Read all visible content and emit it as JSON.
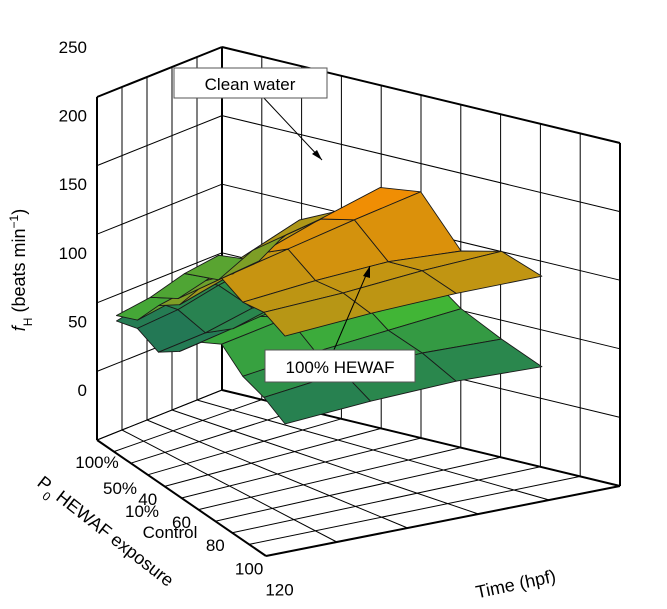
{
  "chart_data": {
    "type": "surface3d",
    "title": "",
    "zlabel": {
      "main": "f",
      "sub": "H",
      "rest": " (beats min",
      "sup": "−1",
      "close": ")"
    },
    "xlabel": "Time (hpf)",
    "ylabel": {
      "main": "P",
      "sub": "0",
      "rest": " HEWAF exposure"
    },
    "zlim": [
      0,
      250
    ],
    "z_ticks": [
      "0",
      "50",
      "100",
      "150",
      "200",
      "250"
    ],
    "time_ticks": [
      "40",
      "60",
      "80",
      "100",
      "120"
    ],
    "exposure_ticks": [
      "100%",
      "50%",
      "10%",
      "Control"
    ],
    "grid": true,
    "series": [
      {
        "name": "Clean water",
        "color_low": "#3aa83a",
        "color_high": "#ff8c00",
        "z_rows": [
          [
            108,
            112,
            150,
            165,
            190,
            195,
            160,
            168,
            158
          ],
          [
            104,
            108,
            138,
            158,
            178,
            186,
            164,
            166,
            158
          ],
          [
            96,
            104,
            126,
            140,
            164,
            176,
            162,
            162,
            156
          ],
          [
            92,
            98,
            118,
            128,
            150,
            166,
            158,
            160,
            152
          ]
        ]
      },
      {
        "name": "100% HEWAF",
        "color_low": "#1e6e5a",
        "color_high": "#4ccc2a",
        "z_rows": [
          [
            108,
            110,
            100,
            120,
            132,
            140,
            118,
            104,
            92
          ],
          [
            102,
            104,
            96,
            110,
            124,
            132,
            114,
            106,
            94
          ],
          [
            94,
            96,
            88,
            100,
            118,
            126,
            110,
            104,
            92
          ],
          [
            88,
            92,
            84,
            94,
            110,
            118,
            104,
            98,
            88
          ]
        ]
      }
    ]
  }
}
